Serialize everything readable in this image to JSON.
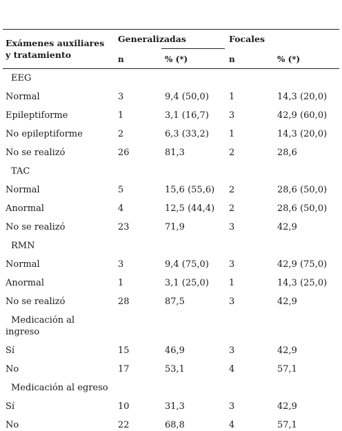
{
  "header": {
    "col_label_line1": "Exámenes auxiliares",
    "col_label_line2": "y tratamiento",
    "group_generalizadas": "Generalizadas",
    "group_focales": "Focales",
    "sub_n_gen": "n",
    "sub_pct_gen": "% (*)",
    "sub_n_foc": "n",
    "sub_pct_foc": "% (*)"
  },
  "rows": [
    {
      "type": "section",
      "label": "EEG"
    },
    {
      "type": "data",
      "label": "Normal",
      "gen_n": "3",
      "gen_pct": "9,4 (50,0)",
      "foc_n": "1",
      "foc_pct": "14,3 (20,0)"
    },
    {
      "type": "data",
      "label": "Epileptiforme",
      "gen_n": "1",
      "gen_pct": "3,1 (16,7)",
      "foc_n": "3",
      "foc_pct": "42,9 (60,0)"
    },
    {
      "type": "data",
      "label": "No epileptiforme",
      "gen_n": "2",
      "gen_pct": "6,3 (33,2)",
      "foc_n": "1",
      "foc_pct": "14,3 (20,0)"
    },
    {
      "type": "data",
      "label": "No se realizó",
      "gen_n": "26",
      "gen_pct": "81,3",
      "foc_n": "2",
      "foc_pct": "28,6"
    },
    {
      "type": "section",
      "label": "TAC"
    },
    {
      "type": "data",
      "label": "Normal",
      "gen_n": "5",
      "gen_pct": "15,6 (55,6)",
      "foc_n": "2",
      "foc_pct": "28,6 (50,0)"
    },
    {
      "type": "data",
      "label": "Anormal",
      "gen_n": "4",
      "gen_pct": "12,5 (44,4)",
      "foc_n": "2",
      "foc_pct": "28,6 (50,0)"
    },
    {
      "type": "data",
      "label": "No se realizó",
      "gen_n": "23",
      "gen_pct": "71,9",
      "foc_n": "3",
      "foc_pct": "42,9"
    },
    {
      "type": "section",
      "label": "RMN"
    },
    {
      "type": "data",
      "label": "Normal",
      "gen_n": "3",
      "gen_pct": "9,4 (75,0)",
      "foc_n": "3",
      "foc_pct": "42,9 (75,0)"
    },
    {
      "type": "data",
      "label": "Anormal",
      "gen_n": "1",
      "gen_pct": "3,1 (25,0)",
      "foc_n": "1",
      "foc_pct": "14,3 (25,0)"
    },
    {
      "type": "data",
      "label": "No se realizó",
      "gen_n": "28",
      "gen_pct": "87,5",
      "foc_n": "3",
      "foc_pct": "42,9"
    },
    {
      "type": "section2",
      "label_line1": "Medicación al",
      "label_line2": "ingreso"
    },
    {
      "type": "data",
      "label": "Sí",
      "gen_n": "15",
      "gen_pct": "46,9",
      "foc_n": "3",
      "foc_pct": "42,9"
    },
    {
      "type": "data",
      "label": "No",
      "gen_n": "17",
      "gen_pct": "53,1",
      "foc_n": "4",
      "foc_pct": "57,1"
    },
    {
      "type": "section",
      "label": "Medicación al egreso"
    },
    {
      "type": "data",
      "label": "Sí",
      "gen_n": "10",
      "gen_pct": "31,3",
      "foc_n": "3",
      "foc_pct": "42,9"
    },
    {
      "type": "data",
      "label": "No",
      "gen_n": "22",
      "gen_pct": "68,8",
      "foc_n": "4",
      "foc_pct": "57,1"
    }
  ]
}
